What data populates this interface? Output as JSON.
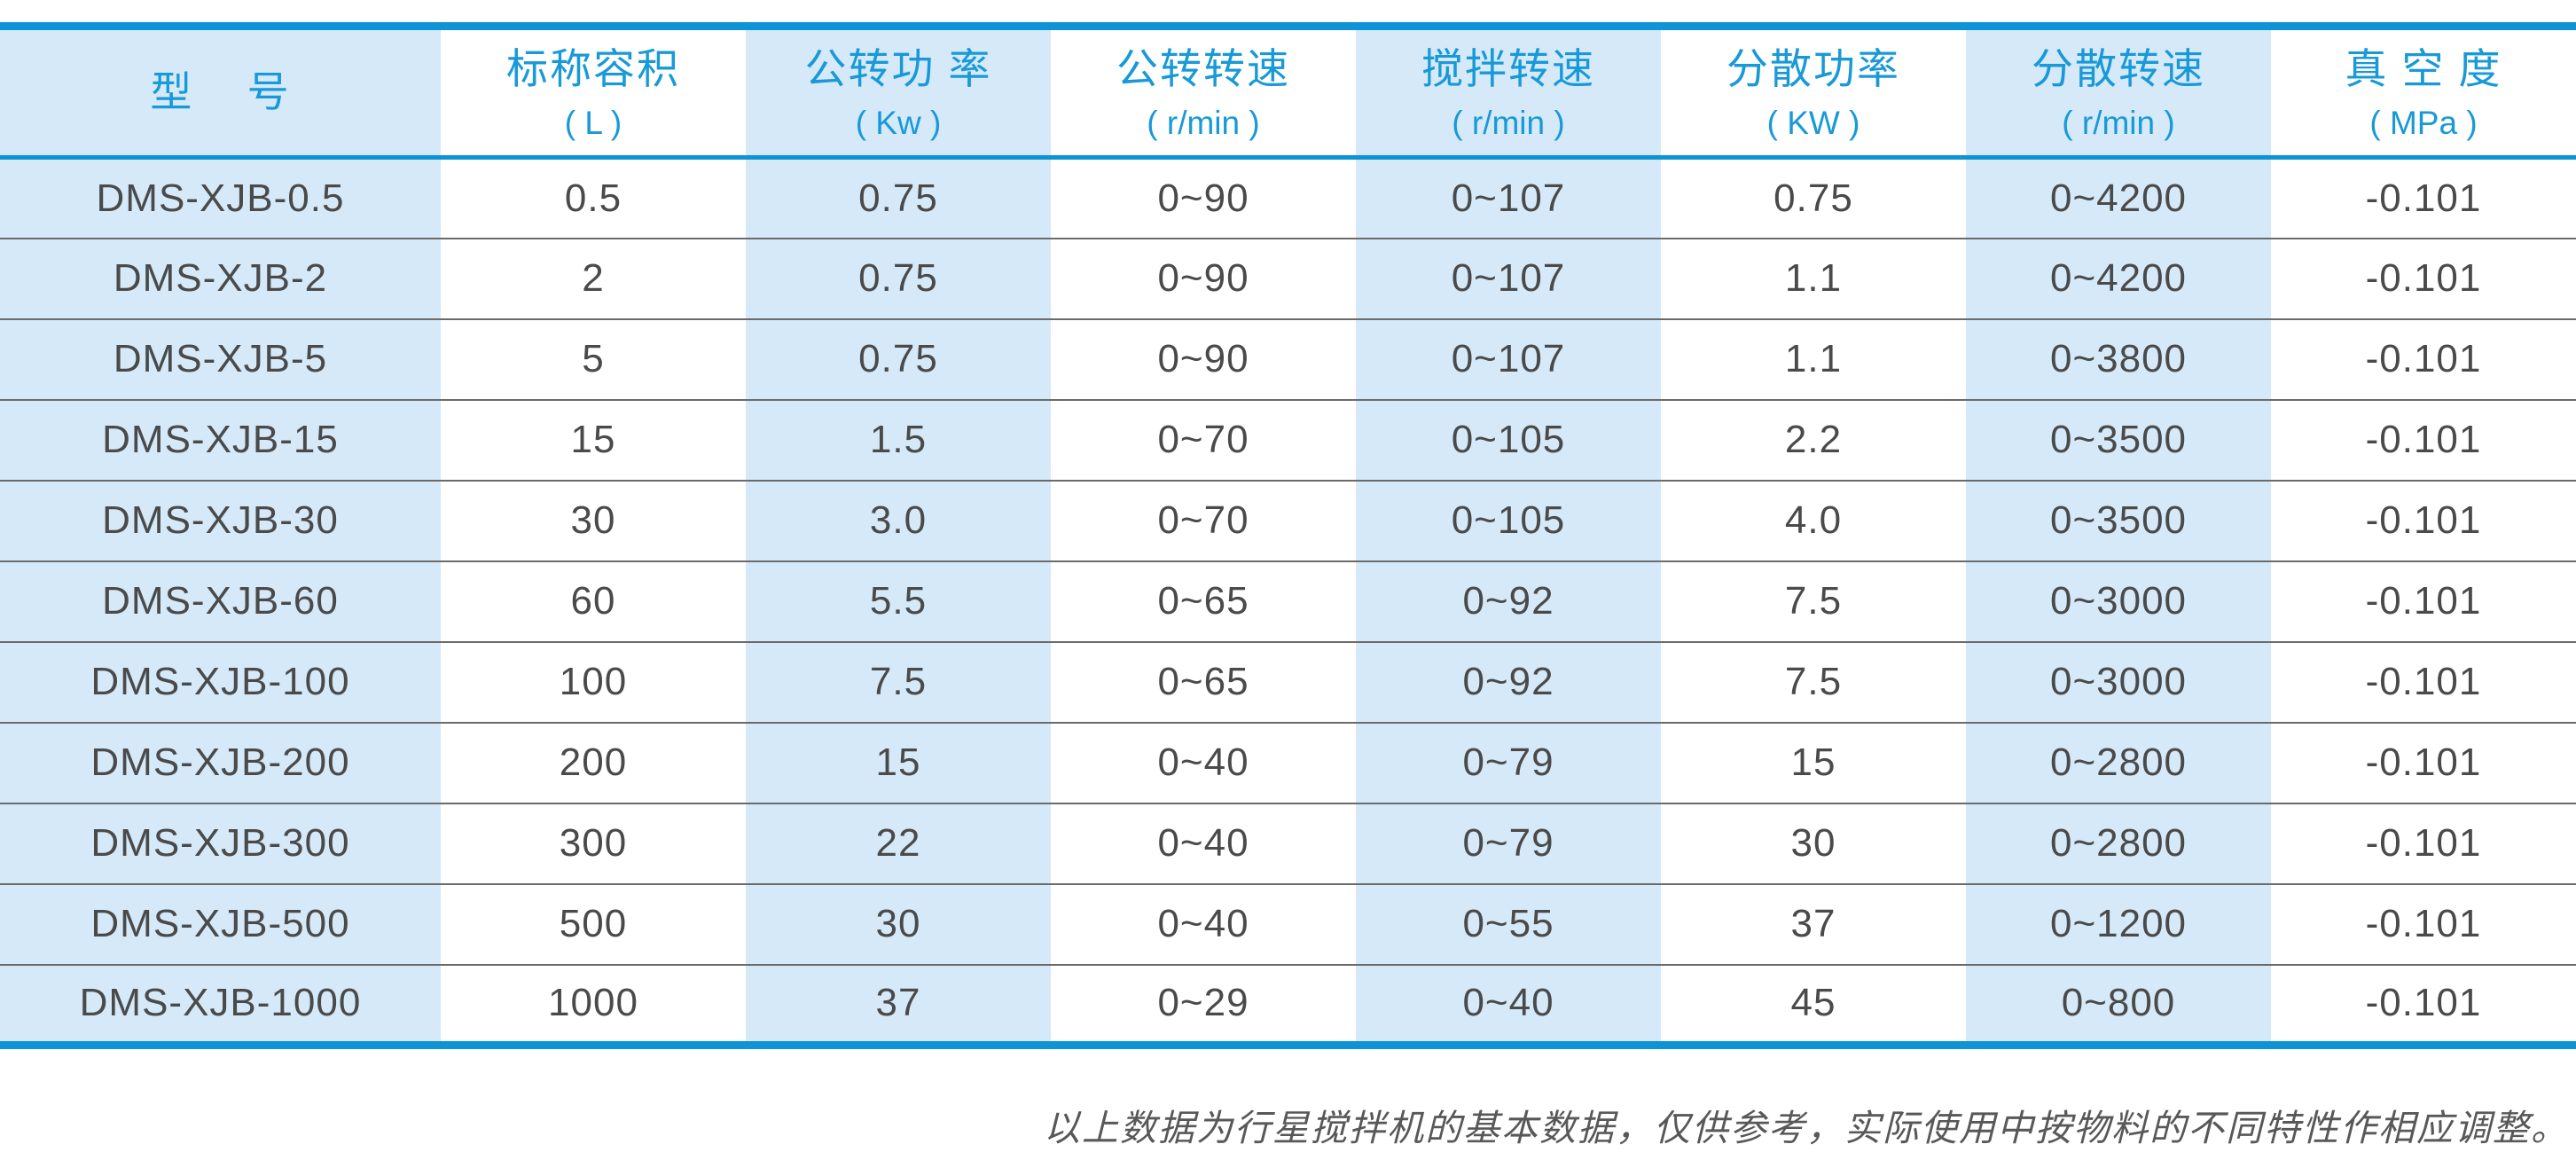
{
  "table": {
    "columns": [
      {
        "title": "型    号",
        "unit": ""
      },
      {
        "title": "标称容积",
        "unit": "( L )"
      },
      {
        "title": "公转功 率",
        "unit": "( Kw )"
      },
      {
        "title": "公转转速",
        "unit": "( r/min )"
      },
      {
        "title": "搅拌转速",
        "unit": "( r/min )"
      },
      {
        "title": "分散功率",
        "unit": "( KW )"
      },
      {
        "title": "分散转速",
        "unit": "( r/min )"
      },
      {
        "title": "真 空 度",
        "unit": "( MPa )"
      }
    ],
    "rows": [
      [
        "DMS-XJB-0.5",
        "0.5",
        "0.75",
        "0~90",
        "0~107",
        "0.75",
        "0~4200",
        "-0.101"
      ],
      [
        "DMS-XJB-2",
        "2",
        "0.75",
        "0~90",
        "0~107",
        "1.1",
        "0~4200",
        "-0.101"
      ],
      [
        "DMS-XJB-5",
        "5",
        "0.75",
        "0~90",
        "0~107",
        "1.1",
        "0~3800",
        "-0.101"
      ],
      [
        "DMS-XJB-15",
        "15",
        "1.5",
        "0~70",
        "0~105",
        "2.2",
        "0~3500",
        "-0.101"
      ],
      [
        "DMS-XJB-30",
        "30",
        "3.0",
        "0~70",
        "0~105",
        "4.0",
        "0~3500",
        "-0.101"
      ],
      [
        "DMS-XJB-60",
        "60",
        "5.5",
        "0~65",
        "0~92",
        "7.5",
        "0~3000",
        "-0.101"
      ],
      [
        "DMS-XJB-100",
        "100",
        "7.5",
        "0~65",
        "0~92",
        "7.5",
        "0~3000",
        "-0.101"
      ],
      [
        "DMS-XJB-200",
        "200",
        "15",
        "0~40",
        "0~79",
        "15",
        "0~2800",
        "-0.101"
      ],
      [
        "DMS-XJB-300",
        "300",
        "22",
        "0~40",
        "0~79",
        "30",
        "0~2800",
        "-0.101"
      ],
      [
        "DMS-XJB-500",
        "500",
        "30",
        "0~40",
        "0~55",
        "37",
        "0~1200",
        "-0.101"
      ],
      [
        "DMS-XJB-1000",
        "1000",
        "37",
        "0~29",
        "0~40",
        "45",
        "0~800",
        "-0.101"
      ]
    ]
  },
  "footer": {
    "note": "以上数据为行星搅拌机的基本数据，仅供参考，实际使用中按物料的不同特性作相应调整。"
  },
  "colors": {
    "accent_blue": "#0d93d6",
    "header_text_blue": "#1899d8",
    "band_light_blue": "#d5e9f8",
    "body_text": "#4a4a4a",
    "row_separator": "#6b6b6b",
    "note_text": "#585858"
  }
}
